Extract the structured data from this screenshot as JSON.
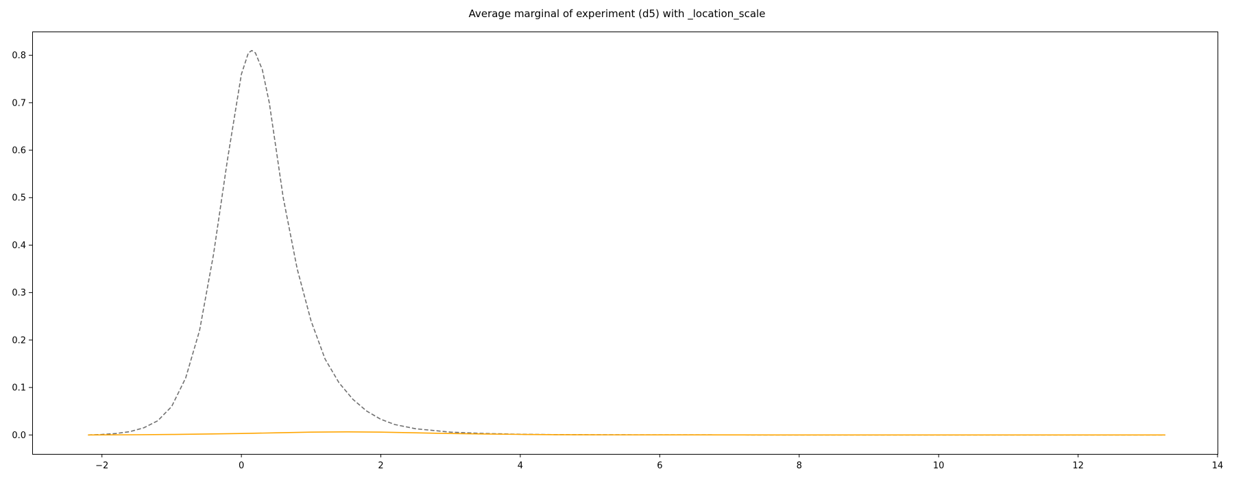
{
  "chart_data": {
    "type": "line",
    "title": "Average marginal of experiment (d5) with _location_scale",
    "xlabel": "",
    "ylabel": "",
    "xlim": [
      -3.0,
      14.0
    ],
    "ylim": [
      -0.04,
      0.85
    ],
    "grid": false,
    "legend": "none",
    "xticks": [
      -2,
      0,
      2,
      4,
      6,
      8,
      10,
      12,
      14
    ],
    "xtick_labels": [
      "−2",
      "0",
      "2",
      "4",
      "6",
      "8",
      "10",
      "12",
      "14"
    ],
    "yticks": [
      0.0,
      0.1,
      0.2,
      0.3,
      0.4,
      0.5,
      0.6,
      0.7,
      0.8
    ],
    "ytick_labels": [
      "0.0",
      "0.1",
      "0.2",
      "0.3",
      "0.4",
      "0.5",
      "0.6",
      "0.7",
      "0.8"
    ],
    "series": [
      {
        "color": "#707070",
        "style": "dashed",
        "x": [
          -2.2,
          -2.0,
          -1.8,
          -1.6,
          -1.4,
          -1.2,
          -1.0,
          -0.8,
          -0.6,
          -0.4,
          -0.2,
          0.0,
          0.1,
          0.15,
          0.2,
          0.3,
          0.4,
          0.5,
          0.6,
          0.8,
          1.0,
          1.2,
          1.4,
          1.6,
          1.8,
          2.0,
          2.2,
          2.5,
          3.0,
          3.5,
          4.0,
          4.5,
          5.0,
          6.0,
          8.0,
          10.0,
          12.0,
          13.25
        ],
        "y": [
          0.0,
          0.001,
          0.003,
          0.007,
          0.015,
          0.03,
          0.06,
          0.12,
          0.22,
          0.38,
          0.58,
          0.76,
          0.805,
          0.81,
          0.805,
          0.77,
          0.7,
          0.6,
          0.5,
          0.35,
          0.24,
          0.16,
          0.11,
          0.075,
          0.05,
          0.033,
          0.022,
          0.013,
          0.006,
          0.003,
          0.0015,
          0.0008,
          0.0004,
          0.0001,
          0.0,
          0.0,
          0.0,
          0.0
        ]
      },
      {
        "color": "#FFA500",
        "style": "solid",
        "x": [
          -2.2,
          -1.5,
          -1.0,
          -0.5,
          0.0,
          0.5,
          1.0,
          1.5,
          2.0,
          2.5,
          3.0,
          3.5,
          4.0,
          4.5,
          5.0,
          6.0,
          8.0,
          10.0,
          12.0,
          13.25
        ],
        "y": [
          0.0,
          0.0005,
          0.001,
          0.002,
          0.003,
          0.0045,
          0.006,
          0.0065,
          0.006,
          0.0045,
          0.003,
          0.002,
          0.0012,
          0.0006,
          0.0003,
          0.0001,
          0.0,
          0.0,
          0.0,
          0.0
        ]
      }
    ]
  }
}
